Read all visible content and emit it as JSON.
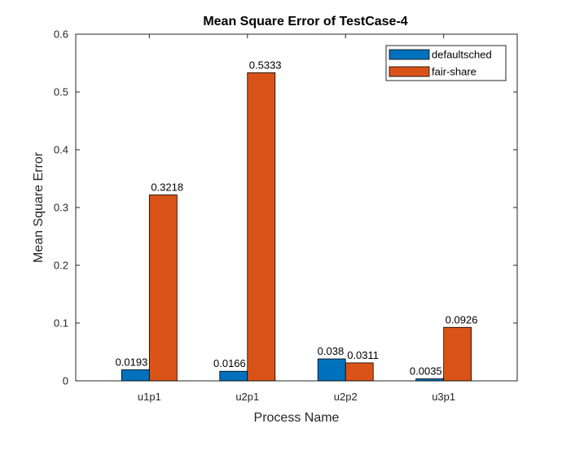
{
  "chart_data": {
    "type": "bar",
    "title": "Mean Square Error of TestCase-4",
    "xlabel": "Process Name",
    "ylabel": "Mean Square Error",
    "categories": [
      "u1p1",
      "u2p1",
      "u2p2",
      "u3p1"
    ],
    "series": [
      {
        "name": "defaultsched",
        "color": "#0072BD",
        "values": [
          0.0193,
          0.0166,
          0.038,
          0.0035
        ],
        "labels": [
          "0.0193",
          "0.0166",
          "0.038",
          "0.0035"
        ]
      },
      {
        "name": "fair-share",
        "color": "#D95319",
        "values": [
          0.3218,
          0.5333,
          0.0311,
          0.0926
        ],
        "labels": [
          "0.3218",
          "0.5333",
          "0.0311",
          "0.0926"
        ]
      }
    ],
    "ylim": [
      0,
      0.6
    ],
    "yticks": [
      0,
      0.1,
      0.2,
      0.3,
      0.4,
      0.5,
      0.6
    ],
    "ytick_labels": [
      "0",
      "0.1",
      "0.2",
      "0.3",
      "0.4",
      "0.5",
      "0.6"
    ],
    "grid": false,
    "legend_position": "top-right"
  }
}
